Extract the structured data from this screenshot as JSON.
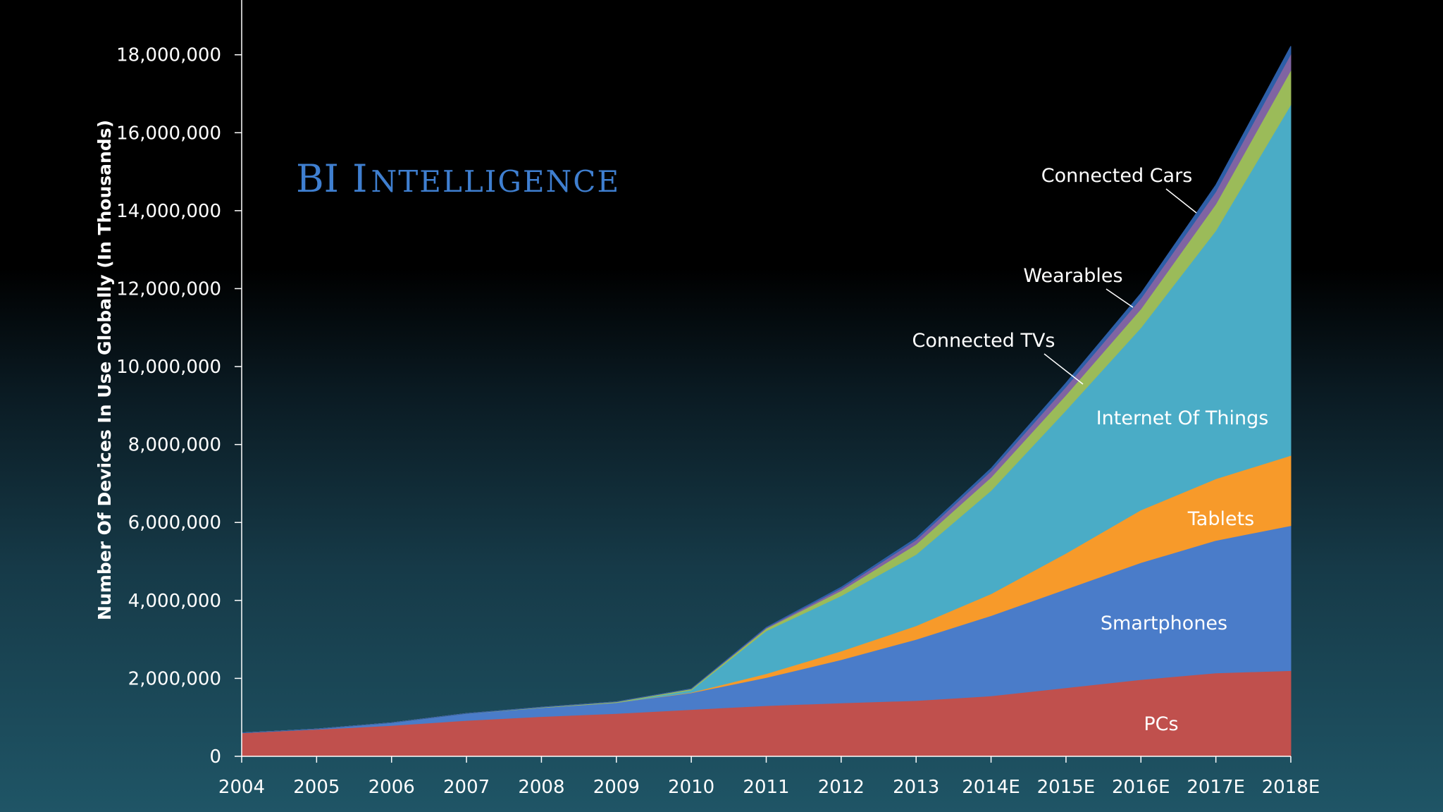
{
  "chart_data": {
    "type": "area",
    "stacked": true,
    "brand": {
      "big1": "BI",
      "big2": "I",
      "small": "NTELLIGENCE"
    },
    "ylabel": "Number Of Devices In Use Globally (In Thousands)",
    "ylim": [
      0,
      19000000
    ],
    "yticks": [
      0,
      2000000,
      4000000,
      6000000,
      8000000,
      10000000,
      12000000,
      14000000,
      16000000,
      18000000
    ],
    "ytick_labels": [
      "0",
      "2,000,000",
      "4,000,000",
      "6,000,000",
      "8,000,000",
      "10,000,000",
      "12,000,000",
      "14,000,000",
      "16,000,000",
      "18,000,000"
    ],
    "categories": [
      "2004",
      "2005",
      "2006",
      "2007",
      "2008",
      "2009",
      "2010",
      "2011",
      "2012",
      "2013",
      "2014E",
      "2015E",
      "2016E",
      "2017E",
      "2018E"
    ],
    "series": [
      {
        "name": "PCs",
        "color": "#c0504d",
        "values": [
          600000,
          690000,
          790000,
          920000,
          1020000,
          1100000,
          1200000,
          1300000,
          1370000,
          1430000,
          1550000,
          1760000,
          1970000,
          2140000,
          2200000
        ]
      },
      {
        "name": "Smartphones",
        "color": "#4a7cc9",
        "values": [
          0,
          10000,
          70000,
          180000,
          230000,
          280000,
          430000,
          720000,
          1110000,
          1570000,
          2060000,
          2530000,
          3000000,
          3400000,
          3720000
        ]
      },
      {
        "name": "Tablets",
        "color": "#f79a2a",
        "values": [
          0,
          0,
          0,
          0,
          0,
          0,
          10000,
          100000,
          220000,
          350000,
          560000,
          920000,
          1350000,
          1580000,
          1800000
        ]
      },
      {
        "name": "Internet Of Things",
        "color": "#4aacc6",
        "values": [
          0,
          0,
          0,
          0,
          0,
          0,
          60000,
          1100000,
          1420000,
          1830000,
          2650000,
          3670000,
          4680000,
          6370000,
          9000000
        ]
      },
      {
        "name": "Connected TVs",
        "color": "#9bbb59",
        "values": [
          0,
          0,
          0,
          0,
          10000,
          20000,
          30000,
          60000,
          130000,
          260000,
          340000,
          390000,
          480000,
          680000,
          880000
        ]
      },
      {
        "name": "Wearables",
        "color": "#8064a2",
        "values": [
          0,
          0,
          0,
          0,
          0,
          0,
          0,
          20000,
          60000,
          110000,
          160000,
          210000,
          270000,
          320000,
          420000
        ]
      },
      {
        "name": "Connected Cars",
        "color": "#2e5fa8",
        "values": [
          0,
          0,
          0,
          0,
          0,
          0,
          0,
          10000,
          30000,
          50000,
          70000,
          100000,
          130000,
          170000,
          200000
        ]
      }
    ],
    "annotations": [
      {
        "series": "Connected Cars",
        "text": "Connected Cars"
      },
      {
        "series": "Wearables",
        "text": "Wearables"
      },
      {
        "series": "Connected TVs",
        "text": "Connected TVs"
      },
      {
        "series": "Internet Of Things",
        "text": "Internet Of Things"
      },
      {
        "series": "Tablets",
        "text": "Tablets"
      },
      {
        "series": "Smartphones",
        "text": "Smartphones"
      },
      {
        "series": "PCs",
        "text": "PCs"
      }
    ]
  }
}
